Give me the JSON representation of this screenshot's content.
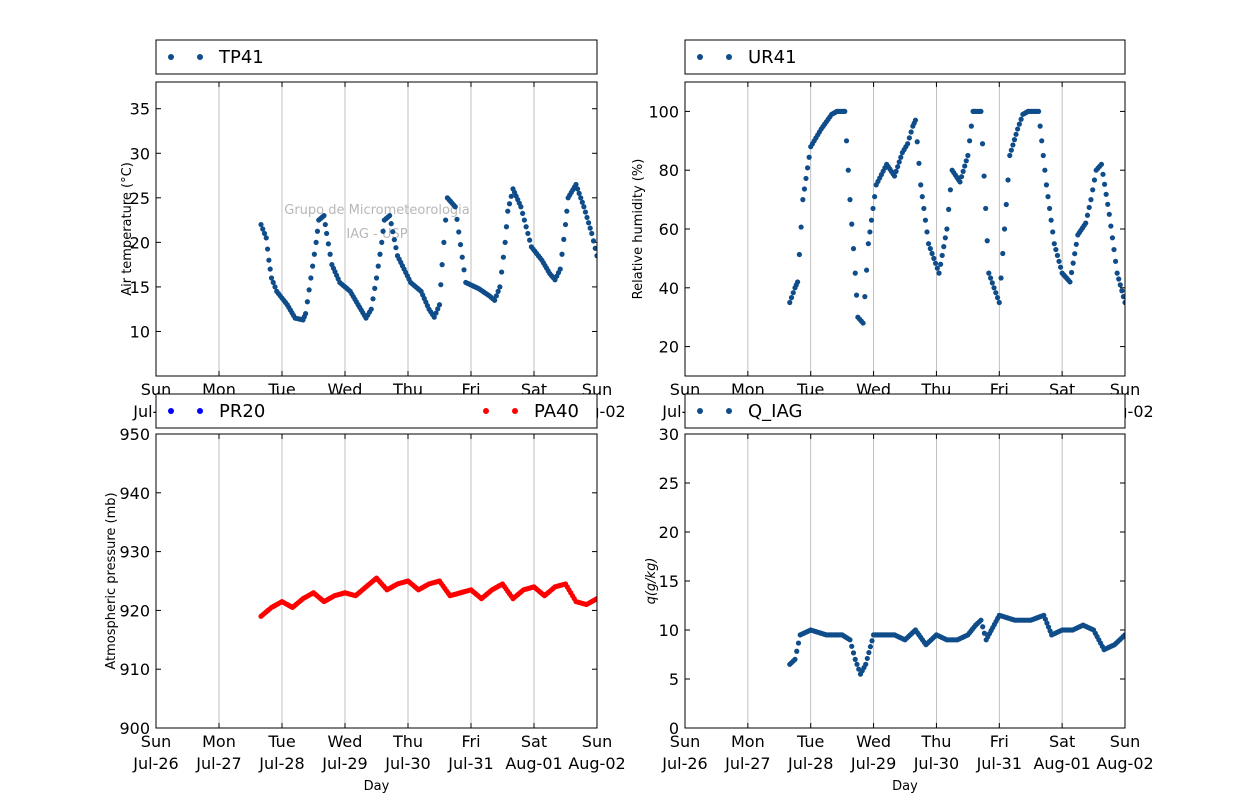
{
  "watermark": {
    "line1": "Grupo de Micrometeorologia",
    "line2": "IAG - USP"
  },
  "colors": {
    "series_blue": "#0f4c8a",
    "series_red": "#ff0000",
    "pure_blue": "#0000ff"
  },
  "chart_data": [
    {
      "id": "temperature",
      "type": "scatter",
      "ylabel": "Air temperature (°C)",
      "xlabel": "",
      "ylim": [
        5,
        38
      ],
      "yticks": [
        10,
        15,
        20,
        25,
        30,
        35
      ],
      "xlim": [
        "2015-07-26",
        "2015-08-02"
      ],
      "xticks": [
        [
          "Sun",
          "Jul-26"
        ],
        [
          "Mon",
          "Jul-27"
        ],
        [
          "Tue",
          "Jul-28"
        ],
        [
          "Wed",
          "Jul-29"
        ],
        [
          "Thu",
          "Jul-30"
        ],
        [
          "Fri",
          "Jul-31"
        ],
        [
          "Sat",
          "Aug-01"
        ],
        [
          "Sun",
          "Aug-02"
        ]
      ],
      "grid": true,
      "legend_placement": "above",
      "legend": [
        {
          "name": "TP41",
          "color": "#0f4c8a"
        }
      ],
      "series": [
        {
          "name": "TP41",
          "color": "#0f4c8a",
          "x": [
            "2015-07-27 16:00",
            "2015-07-27 18:00",
            "2015-07-27 19:00",
            "2015-07-27 20:00",
            "2015-07-27 22:00",
            "2015-07-28 02:00",
            "2015-07-28 05:00",
            "2015-07-28 08:00",
            "2015-07-28 09:00",
            "2015-07-28 11:00",
            "2015-07-28 13:00",
            "2015-07-28 14:00",
            "2015-07-28 16:00",
            "2015-07-28 17:00",
            "2015-07-28 19:00",
            "2015-07-28 22:00",
            "2015-07-29 02:00",
            "2015-07-29 05:00",
            "2015-07-29 08:00",
            "2015-07-29 10:00",
            "2015-07-29 12:00",
            "2015-07-29 14:00",
            "2015-07-29 15:00",
            "2015-07-29 17:00",
            "2015-07-29 20:00",
            "2015-07-30 01:00",
            "2015-07-30 05:00",
            "2015-07-30 08:00",
            "2015-07-30 10:00",
            "2015-07-30 12:00",
            "2015-07-30 13:00",
            "2015-07-30 15:00",
            "2015-07-30 18:00",
            "2015-07-30 22:00",
            "2015-07-31 03:00",
            "2015-07-31 07:00",
            "2015-07-31 09:00",
            "2015-07-31 11:00",
            "2015-07-31 13:00",
            "2015-07-31 14:00",
            "2015-07-31 16:00",
            "2015-07-31 19:00",
            "2015-07-31 23:00",
            "2015-08-01 03:00",
            "2015-08-01 06:00",
            "2015-08-01 08:00",
            "2015-08-01 10:00",
            "2015-08-01 12:00",
            "2015-08-01 13:00",
            "2015-08-01 16:00",
            "2015-08-01 19:00",
            "2015-08-01 22:00",
            "2015-08-02 00:00"
          ],
          "y": [
            22,
            20.5,
            18,
            16,
            14.5,
            13,
            11.5,
            11.3,
            12,
            16,
            20,
            22.5,
            23,
            21,
            17.5,
            15.5,
            14.5,
            13,
            11.5,
            12.5,
            16,
            20,
            22.5,
            23,
            18.5,
            15.5,
            14.5,
            12.5,
            11.6,
            13,
            17.5,
            25,
            24,
            15.5,
            14.8,
            14,
            13.5,
            15,
            20,
            23.5,
            26,
            24,
            19.5,
            18,
            16.5,
            15.8,
            17,
            22,
            25,
            26.5,
            24,
            21,
            18.5
          ]
        }
      ]
    },
    {
      "id": "humidity",
      "type": "scatter",
      "ylabel": "Relative humidity (%)",
      "xlabel": "",
      "ylim": [
        10,
        110
      ],
      "yticks": [
        20,
        40,
        60,
        80,
        100
      ],
      "xlim": [
        "2015-07-26",
        "2015-08-02"
      ],
      "xticks": [
        [
          "Sun",
          "Jul-26"
        ],
        [
          "Mon",
          "Jul-27"
        ],
        [
          "Tue",
          "Jul-28"
        ],
        [
          "Wed",
          "Jul-29"
        ],
        [
          "Thu",
          "Jul-30"
        ],
        [
          "Fri",
          "Jul-31"
        ],
        [
          "Sat",
          "Aug-01"
        ],
        [
          "Sun",
          "Aug-02"
        ]
      ],
      "grid": true,
      "legend_placement": "above",
      "legend": [
        {
          "name": "UR41",
          "color": "#0f4c8a"
        }
      ],
      "series": [
        {
          "name": "UR41",
          "color": "#0f4c8a",
          "x": [
            "2015-07-27 16:00",
            "2015-07-27 18:00",
            "2015-07-27 19:00",
            "2015-07-27 21:00",
            "2015-07-28 00:00",
            "2015-07-28 04:00",
            "2015-07-28 08:00",
            "2015-07-28 10:00",
            "2015-07-28 12:00",
            "2015-07-28 13:00",
            "2015-07-28 15:00",
            "2015-07-28 17:00",
            "2015-07-28 18:00",
            "2015-07-28 20:00",
            "2015-07-28 22:00",
            "2015-07-29 01:00",
            "2015-07-29 05:00",
            "2015-07-29 08:00",
            "2015-07-29 11:00",
            "2015-07-29 13:00",
            "2015-07-29 15:00",
            "2015-07-29 16:00",
            "2015-07-29 18:00",
            "2015-07-29 21:00",
            "2015-07-30 01:00",
            "2015-07-30 04:00",
            "2015-07-30 06:00",
            "2015-07-30 09:00",
            "2015-07-30 12:00",
            "2015-07-30 14:00",
            "2015-07-30 15:00",
            "2015-07-30 17:00",
            "2015-07-30 20:00",
            "2015-07-31 00:00",
            "2015-07-31 04:00",
            "2015-07-31 07:00",
            "2015-07-31 09:00",
            "2015-07-31 11:00",
            "2015-07-31 13:00",
            "2015-07-31 15:00",
            "2015-07-31 18:00",
            "2015-07-31 21:00",
            "2015-08-01 00:00",
            "2015-08-01 03:00",
            "2015-08-01 06:00",
            "2015-08-01 09:00",
            "2015-08-01 11:00",
            "2015-08-01 13:00",
            "2015-08-01 15:00",
            "2015-08-01 18:00",
            "2015-08-01 21:00",
            "2015-08-02 00:00"
          ],
          "y": [
            35,
            40,
            42,
            70,
            88,
            94,
            99,
            100,
            100,
            100,
            70,
            45,
            30,
            28,
            55,
            75,
            82,
            78,
            86,
            89,
            95,
            97,
            75,
            55,
            45,
            60,
            80,
            76,
            85,
            100,
            100,
            100,
            45,
            35,
            85,
            94,
            99,
            100,
            100,
            100,
            75,
            55,
            45,
            42,
            58,
            62,
            70,
            80,
            82,
            65,
            45,
            35
          ]
        }
      ]
    },
    {
      "id": "pressure",
      "type": "scatter",
      "ylabel": "Atmospheric pressure (mb)",
      "xlabel": "Day",
      "ylim": [
        900,
        950
      ],
      "yticks": [
        900,
        910,
        920,
        930,
        940,
        950
      ],
      "xlim": [
        "2015-07-26",
        "2015-08-02"
      ],
      "xticks": [
        [
          "Sun",
          "Jul-26"
        ],
        [
          "Mon",
          "Jul-27"
        ],
        [
          "Tue",
          "Jul-28"
        ],
        [
          "Wed",
          "Jul-29"
        ],
        [
          "Thu",
          "Jul-30"
        ],
        [
          "Fri",
          "Jul-31"
        ],
        [
          "Sat",
          "Aug-01"
        ],
        [
          "Sun",
          "Aug-02"
        ]
      ],
      "grid": true,
      "legend_placement": "above",
      "legend": [
        {
          "name": "PR20",
          "color": "#0000ff"
        },
        {
          "name": "PA40",
          "color": "#ff0000"
        }
      ],
      "series": [
        {
          "name": "PA40",
          "color": "#ff0000",
          "x": [
            "2015-07-27 16:00",
            "2015-07-27 20:00",
            "2015-07-28 00:00",
            "2015-07-28 04:00",
            "2015-07-28 08:00",
            "2015-07-28 12:00",
            "2015-07-28 16:00",
            "2015-07-28 20:00",
            "2015-07-29 00:00",
            "2015-07-29 04:00",
            "2015-07-29 08:00",
            "2015-07-29 12:00",
            "2015-07-29 16:00",
            "2015-07-29 20:00",
            "2015-07-30 00:00",
            "2015-07-30 04:00",
            "2015-07-30 08:00",
            "2015-07-30 12:00",
            "2015-07-30 16:00",
            "2015-07-30 20:00",
            "2015-07-31 00:00",
            "2015-07-31 04:00",
            "2015-07-31 08:00",
            "2015-07-31 12:00",
            "2015-07-31 16:00",
            "2015-07-31 20:00",
            "2015-08-01 00:00",
            "2015-08-01 04:00",
            "2015-08-01 08:00",
            "2015-08-01 12:00",
            "2015-08-01 16:00",
            "2015-08-01 20:00",
            "2015-08-02 00:00"
          ],
          "y": [
            919,
            920.5,
            921.5,
            920.5,
            922,
            923,
            921.5,
            922.5,
            923,
            922.5,
            924,
            925.5,
            923.5,
            924.5,
            925,
            923.5,
            924.5,
            925,
            922.5,
            923,
            923.5,
            922,
            923.5,
            924.5,
            922,
            923.5,
            924,
            922.5,
            924,
            924.5,
            921.5,
            921,
            922
          ]
        }
      ]
    },
    {
      "id": "specific_humidity",
      "type": "scatter",
      "ylabel": "q(g/kg)",
      "xlabel": "Day",
      "ylim": [
        0,
        30
      ],
      "yticks": [
        0,
        5,
        10,
        15,
        20,
        25,
        30
      ],
      "xlim": [
        "2015-07-26",
        "2015-08-02"
      ],
      "xticks": [
        [
          "Sun",
          "Jul-26"
        ],
        [
          "Mon",
          "Jul-27"
        ],
        [
          "Tue",
          "Jul-28"
        ],
        [
          "Wed",
          "Jul-29"
        ],
        [
          "Thu",
          "Jul-30"
        ],
        [
          "Fri",
          "Jul-31"
        ],
        [
          "Sat",
          "Aug-01"
        ],
        [
          "Sun",
          "Aug-02"
        ]
      ],
      "grid": true,
      "legend_placement": "above",
      "legend": [
        {
          "name": "Q_IAG",
          "color": "#0f4c8a"
        }
      ],
      "series": [
        {
          "name": "Q_IAG",
          "color": "#0f4c8a",
          "x": [
            "2015-07-27 16:00",
            "2015-07-27 18:00",
            "2015-07-27 20:00",
            "2015-07-28 00:00",
            "2015-07-28 06:00",
            "2015-07-28 12:00",
            "2015-07-28 15:00",
            "2015-07-28 17:00",
            "2015-07-28 19:00",
            "2015-07-28 21:00",
            "2015-07-29 00:00",
            "2015-07-29 04:00",
            "2015-07-29 08:00",
            "2015-07-29 12:00",
            "2015-07-29 16:00",
            "2015-07-29 20:00",
            "2015-07-30 00:00",
            "2015-07-30 04:00",
            "2015-07-30 08:00",
            "2015-07-30 12:00",
            "2015-07-30 15:00",
            "2015-07-30 17:00",
            "2015-07-30 19:00",
            "2015-07-31 00:00",
            "2015-07-31 06:00",
            "2015-07-31 12:00",
            "2015-07-31 17:00",
            "2015-07-31 20:00",
            "2015-08-01 00:00",
            "2015-08-01 04:00",
            "2015-08-01 08:00",
            "2015-08-01 12:00",
            "2015-08-01 16:00",
            "2015-08-01 20:00",
            "2015-08-02 00:00"
          ],
          "y": [
            6.5,
            7,
            9.5,
            10,
            9.5,
            9.5,
            9,
            7,
            5.5,
            6.5,
            9.5,
            9.5,
            9.5,
            9,
            10,
            8.5,
            9.5,
            9,
            9,
            9.5,
            10.5,
            11,
            9,
            11.5,
            11,
            11,
            11.5,
            9.5,
            10,
            10,
            10.5,
            10,
            8,
            8.5,
            9.5
          ]
        }
      ]
    }
  ]
}
